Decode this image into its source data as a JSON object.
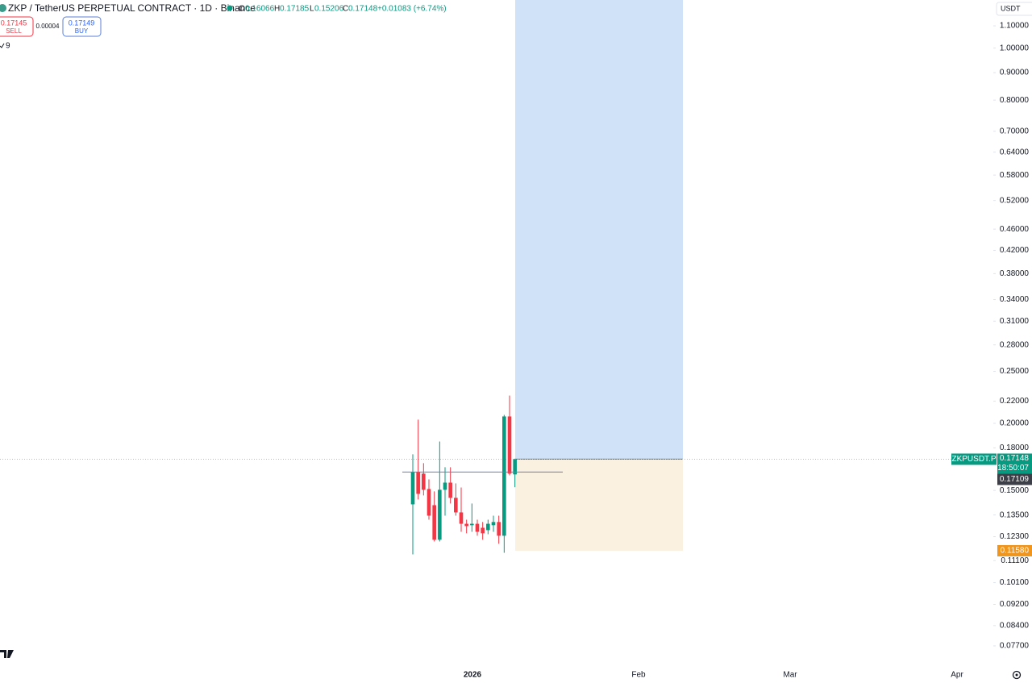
{
  "chart_data": {
    "type": "candlestick",
    "title": "ZKP / TetherUS PERPETUAL CONTRACT · 1D · Binance",
    "symbol": "ZKPUSDT.P",
    "currency": "USDT",
    "ohlc_keys": [
      "O",
      "H",
      "L",
      "C"
    ],
    "change": "+0.01083 (+6.74%)",
    "sell": {
      "price": 0.17145,
      "label": "SELL"
    },
    "spread": 4e-05,
    "buy": {
      "price": 0.17149,
      "label": "BUY"
    },
    "indicators_count": 9,
    "countdown": "18:50:07",
    "marker_price": 0.17109,
    "categories": [
      null,
      null,
      null,
      null,
      null,
      null,
      null,
      null,
      null,
      null,
      null,
      null,
      null,
      null,
      null,
      null,
      null,
      null,
      null,
      null
    ],
    "open": [
      0.1413,
      0.1623,
      0.1612,
      0.1509,
      0.1408,
      0.1214,
      0.1504,
      0.1551,
      0.1453,
      0.1365,
      0.13,
      0.1292,
      0.13,
      0.1278,
      0.1265,
      0.1292,
      0.131,
      0.1235,
      0.206,
      0.16066
    ],
    "high": [
      0.1751,
      0.2032,
      0.1686,
      0.1573,
      0.1494,
      0.185,
      0.1657,
      0.1657,
      0.1546,
      0.1519,
      0.1323,
      0.1418,
      0.1323,
      0.131,
      0.1323,
      0.1346,
      0.1346,
      0.2074,
      0.2253,
      0.17185
    ],
    "low": [
      0.114,
      0.1443,
      0.1468,
      0.1323,
      0.1205,
      0.1205,
      0.1346,
      0.1418,
      0.1346,
      0.1256,
      0.1248,
      0.1256,
      0.1235,
      0.1214,
      0.1243,
      0.1256,
      0.1193,
      0.1148,
      0.16,
      0.15206
    ],
    "close": [
      0.1623,
      0.1478,
      0.1504,
      0.1346,
      0.1214,
      0.1504,
      0.1551,
      0.1453,
      0.1365,
      0.13,
      0.1287,
      0.13,
      0.1256,
      0.1248,
      0.13,
      0.131,
      0.1235,
      0.206,
      0.1612,
      0.17148
    ],
    "up_color": "#089981",
    "down_color": "#f23645",
    "log_scale": true,
    "ylim": [
      0.0716,
      1.229
    ],
    "yticks": [
      {
        "value": 1.1,
        "label": "1.10000"
      },
      {
        "value": 1.0,
        "label": "1.00000"
      },
      {
        "value": 0.9,
        "label": "0.90000"
      },
      {
        "value": 0.8,
        "label": "0.80000"
      },
      {
        "value": 0.7,
        "label": "0.70000"
      },
      {
        "value": 0.64,
        "label": "0.64000"
      },
      {
        "value": 0.58,
        "label": "0.58000"
      },
      {
        "value": 0.52,
        "label": "0.52000"
      },
      {
        "value": 0.46,
        "label": "0.46000"
      },
      {
        "value": 0.42,
        "label": "0.42000"
      },
      {
        "value": 0.38,
        "label": "0.38000"
      },
      {
        "value": 0.34,
        "label": "0.34000"
      },
      {
        "value": 0.31,
        "label": "0.31000"
      },
      {
        "value": 0.28,
        "label": "0.28000"
      },
      {
        "value": 0.25,
        "label": "0.25000"
      },
      {
        "value": 0.22,
        "label": "0.22000"
      },
      {
        "value": 0.2,
        "label": "0.20000"
      },
      {
        "value": 0.18,
        "label": "0.18000"
      },
      {
        "value": 0.15,
        "label": "0.15000"
      },
      {
        "value": 0.135,
        "label": "0.13500"
      },
      {
        "value": 0.123,
        "label": "0.12300"
      },
      {
        "value": 0.111,
        "label": "0.11100"
      },
      {
        "value": 0.101,
        "label": "0.10100"
      },
      {
        "value": 0.092,
        "label": "0.09200"
      },
      {
        "value": 0.084,
        "label": "0.08400"
      },
      {
        "value": 0.077,
        "label": "0.07700"
      }
    ],
    "x_labels": [
      "2026",
      "Feb",
      "Mar",
      "Apr"
    ],
    "hline": 0.1623,
    "position": {
      "entry": 0.1715,
      "stop": {
        "value": 0.1158,
        "label": "0.11580"
      },
      "target_color": "#cfe2f8",
      "stop_color": "#fbf1e1"
    }
  }
}
